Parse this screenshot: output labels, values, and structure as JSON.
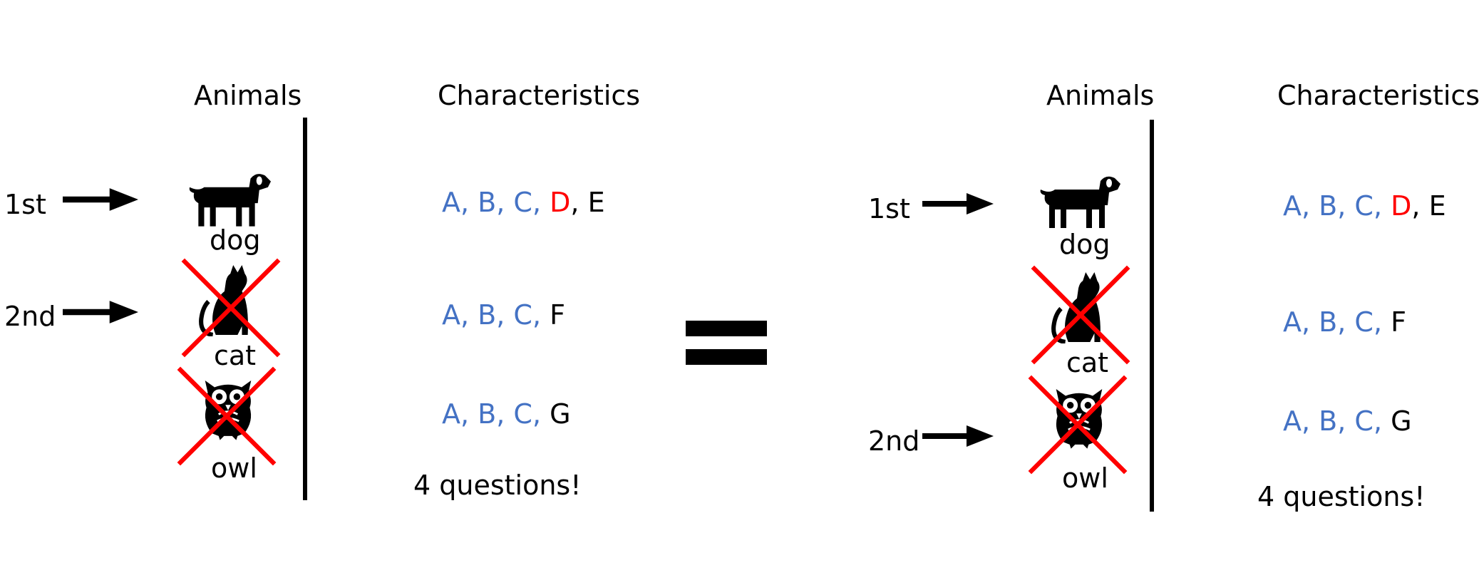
{
  "colors": {
    "shared": "#4472C4",
    "highlight": "#FF0000",
    "text": "#000000",
    "cross": "#FF0000"
  },
  "panels": [
    {
      "headers": {
        "animals": "Animals",
        "characteristics": "Characteristics"
      },
      "animals": [
        {
          "label": "dog",
          "icon": "dog-icon",
          "eliminated": false
        },
        {
          "label": "cat",
          "icon": "cat-icon",
          "eliminated": true
        },
        {
          "label": "owl",
          "icon": "owl-icon",
          "eliminated": true
        }
      ],
      "pointers": [
        {
          "label": "1st",
          "target": "dog"
        },
        {
          "label": "2nd",
          "target": "cat"
        }
      ],
      "characteristics": [
        {
          "shared": [
            "A,",
            "B,",
            "C,"
          ],
          "highlight": "D",
          "rest": [
            ", E"
          ]
        },
        {
          "shared": [
            "A,",
            "B,",
            "C,"
          ],
          "highlight": "",
          "rest": [
            "F"
          ]
        },
        {
          "shared": [
            "A,",
            "B,",
            "C,"
          ],
          "highlight": "",
          "rest": [
            "G"
          ]
        }
      ],
      "summary": "4 questions!"
    },
    {
      "headers": {
        "animals": "Animals",
        "characteristics": "Characteristics"
      },
      "animals": [
        {
          "label": "dog",
          "icon": "dog-icon",
          "eliminated": false
        },
        {
          "label": "cat",
          "icon": "cat-icon",
          "eliminated": true
        },
        {
          "label": "owl",
          "icon": "owl-icon",
          "eliminated": true
        }
      ],
      "pointers": [
        {
          "label": "1st",
          "target": "dog"
        },
        {
          "label": "2nd",
          "target": "owl"
        }
      ],
      "characteristics": [
        {
          "shared": [
            "A,",
            "B,",
            "C,"
          ],
          "highlight": "D",
          "rest": [
            ", E"
          ]
        },
        {
          "shared": [
            "A,",
            "B,",
            "C,"
          ],
          "highlight": "",
          "rest": [
            "F"
          ]
        },
        {
          "shared": [
            "A,",
            "B,",
            "C,"
          ],
          "highlight": "",
          "rest": [
            "G"
          ]
        }
      ],
      "summary": "4 questions!"
    }
  ],
  "equals": {
    "icon": "equals-icon"
  }
}
